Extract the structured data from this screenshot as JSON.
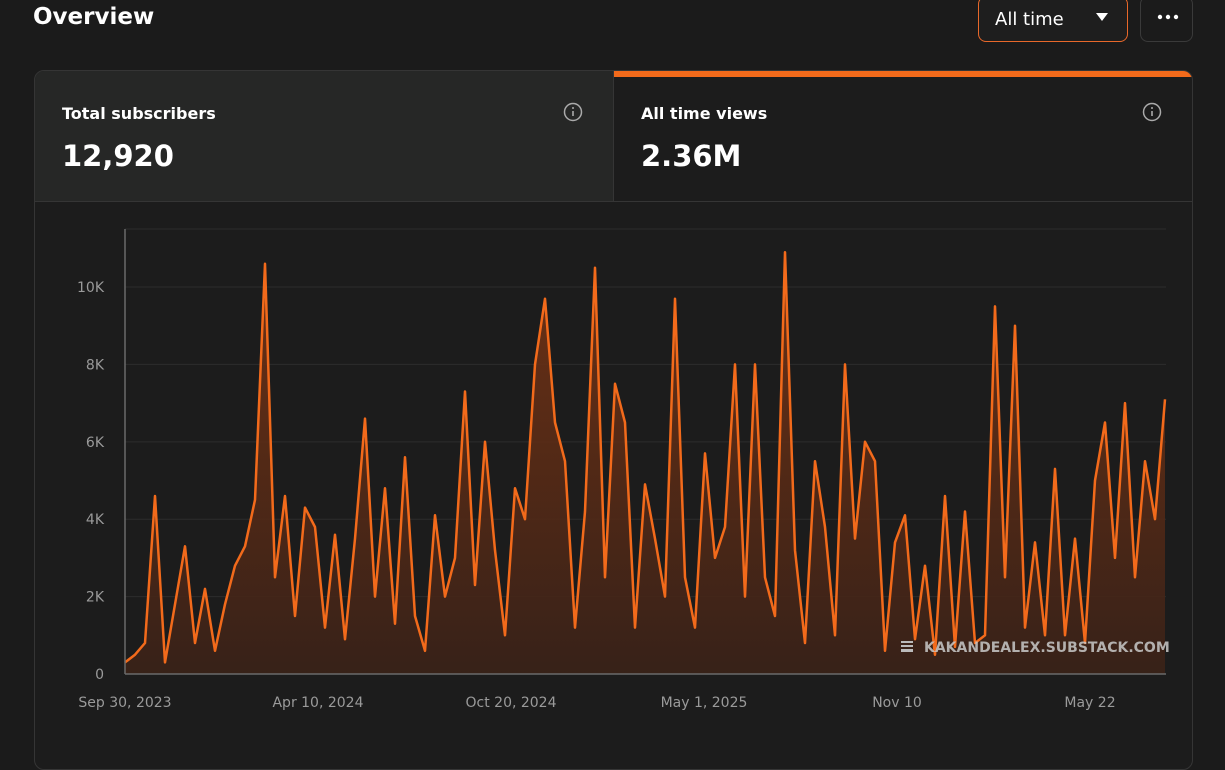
{
  "header": {
    "title": "Overview",
    "range_select": "All time"
  },
  "stats": [
    {
      "label": "Total subscribers",
      "value": "12,920"
    },
    {
      "label": "All time views",
      "value": "2.36M"
    }
  ],
  "watermark": "KAKANDEALEX.SUBSTACK.COM",
  "chart_data": {
    "type": "area",
    "color": "#f26a1b",
    "grid": true,
    "x": [
      "2023-09-30",
      "2023-10-10",
      "2023-10-20",
      "2023-10-30",
      "2023-11-09",
      "2023-11-19",
      "2023-11-29",
      "2023-12-09",
      "2023-12-19",
      "2023-12-29",
      "2024-01-08",
      "2024-01-18",
      "2024-01-28",
      "2024-02-07",
      "2024-02-17",
      "2024-02-27",
      "2024-03-08",
      "2024-03-18",
      "2024-03-28",
      "2024-04-07",
      "2024-04-17",
      "2024-04-27",
      "2024-05-07",
      "2024-05-17",
      "2024-05-27",
      "2024-06-06",
      "2024-06-16",
      "2024-06-26",
      "2024-07-06",
      "2024-07-16",
      "2024-07-26",
      "2024-08-05",
      "2024-08-15",
      "2024-08-25",
      "2024-09-04",
      "2024-09-14",
      "2024-09-24",
      "2024-10-04",
      "2024-10-14",
      "2024-10-24",
      "2024-11-03",
      "2024-11-13",
      "2024-11-23",
      "2024-12-03",
      "2024-12-13",
      "2024-12-23",
      "2025-01-02",
      "2025-01-12",
      "2025-01-22",
      "2025-02-01",
      "2025-02-11",
      "2025-02-21",
      "2025-03-03",
      "2025-03-13",
      "2025-03-23",
      "2025-04-02",
      "2025-04-12",
      "2025-04-22",
      "2025-05-02",
      "2025-05-12",
      "2025-05-22",
      "2025-06-01",
      "2025-06-11",
      "2025-06-21",
      "2025-07-01",
      "2025-07-11",
      "2025-07-21",
      "2025-07-31",
      "2025-08-10",
      "2025-08-20",
      "2025-08-30",
      "2025-09-09",
      "2025-09-19",
      "2025-09-29",
      "2025-10-09",
      "2025-10-19",
      "2025-10-29",
      "2025-11-08",
      "2025-11-18",
      "2025-11-28",
      "2025-12-08",
      "2025-12-18",
      "2025-12-28",
      "2026-01-07",
      "2026-01-17",
      "2026-01-27",
      "2026-02-06",
      "2026-02-16",
      "2026-02-26",
      "2026-03-08",
      "2026-03-18",
      "2026-03-28",
      "2026-04-07",
      "2026-04-17",
      "2026-04-27",
      "2026-05-07",
      "2026-05-17",
      "2026-05-27",
      "2026-06-06",
      "2026-06-16",
      "2026-06-26",
      "2026-07-06",
      "2026-07-16",
      "2026-07-26",
      "2026-08-05"
    ],
    "values": [
      300,
      500,
      800,
      4600,
      300,
      1800,
      3300,
      800,
      2200,
      600,
      1800,
      2800,
      3300,
      4500,
      10600,
      2500,
      4600,
      1500,
      4300,
      3800,
      1200,
      3600,
      900,
      3500,
      6600,
      2000,
      4800,
      1300,
      5600,
      1500,
      600,
      4100,
      2000,
      3000,
      7300,
      2300,
      6000,
      3200,
      1000,
      4800,
      4000,
      8000,
      9700,
      6500,
      5500,
      1200,
      4200,
      10500,
      2500,
      7500,
      6500,
      1200,
      4900,
      3500,
      2000,
      9700,
      2500,
      1200,
      5700,
      3000,
      3800,
      8000,
      2000,
      8000,
      2500,
      1500,
      10900,
      3200,
      800,
      5500,
      3800,
      1000,
      8000,
      3500,
      6000,
      5500,
      600,
      3400,
      4100,
      900,
      2800,
      500,
      4600,
      700,
      4200,
      800,
      1000,
      9500,
      2500,
      9000,
      1200,
      3400,
      1000,
      5300,
      1000,
      3500,
      800,
      5000,
      6500,
      3000,
      7000,
      2500,
      5500,
      4000,
      7100
    ],
    "xlim": [
      "2023-09-30",
      "2026-08-06"
    ],
    "xticks": [
      {
        "value": "2023-09-30",
        "label": "Sep 30, 2023"
      },
      {
        "value": "2024-04-10",
        "label": "Apr 10, 2024"
      },
      {
        "value": "2024-10-20",
        "label": "Oct 20, 2024"
      },
      {
        "value": "2025-05-01",
        "label": "May 1, 2025"
      },
      {
        "value": "2025-11-10",
        "label": "Nov 10"
      },
      {
        "value": "2026-05-22",
        "label": "May 22"
      }
    ],
    "ylim": [
      0,
      11500
    ],
    "yticks": [
      0,
      {
        "value": 2000,
        "label": "2K"
      },
      {
        "value": 4000,
        "label": "4K"
      },
      {
        "value": 6000,
        "label": "6K"
      },
      {
        "value": 8000,
        "label": "8K"
      },
      {
        "value": 10000,
        "label": "10K"
      }
    ]
  }
}
